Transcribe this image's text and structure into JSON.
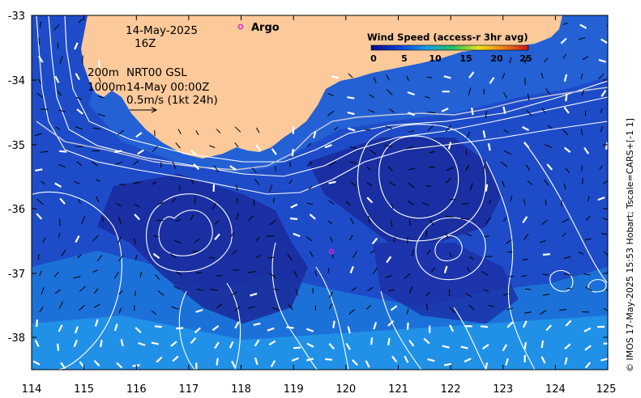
{
  "map": {
    "date": "14-May-2025",
    "hour": "16Z",
    "depth_200": "200m",
    "depth_1000": "1000m",
    "source": "NRT00 GSL",
    "source_time": "14-May 00:00Z",
    "scale_text": "0.5m/s (1kt 24h)",
    "argo_label": "Argo",
    "credit": "© IMOS 17-May-2025 15:53 Hobart; Tscale=CARS+[-1 1]"
  },
  "legend": {
    "title": "Wind Speed (access-r 3hr avg)",
    "ticks": [
      "0",
      "5",
      "10",
      "15",
      "20",
      "25"
    ],
    "colors": [
      "#0a0a8c",
      "#1040d8",
      "#18a0e0",
      "#20c060",
      "#e8e020",
      "#f08020",
      "#c01818"
    ]
  },
  "axes": {
    "x_ticks": [
      "114",
      "115",
      "116",
      "117",
      "118",
      "119",
      "120",
      "121",
      "122",
      "123",
      "124",
      "125"
    ],
    "y_ticks": [
      "-33",
      "-34",
      "-35",
      "-36",
      "-37",
      "-38"
    ],
    "x_range": [
      114,
      125
    ],
    "y_range": [
      -38.5,
      -33
    ]
  },
  "colors": {
    "land": "#fbc99a",
    "ocean_deep": "#1a2ea8",
    "ocean_mid": "#1e56d2",
    "ocean_light": "#1c96e6",
    "contour": "#ffffff",
    "argo": "#e020e0"
  }
}
